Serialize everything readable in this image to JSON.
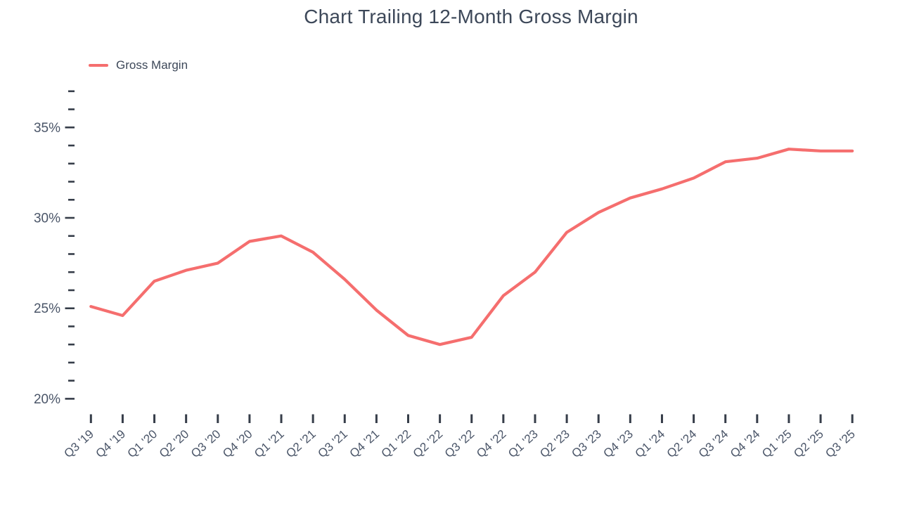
{
  "page": {
    "background": "#ffffff"
  },
  "chart_data": {
    "type": "line",
    "title": "Chart Trailing 12-Month Gross Margin",
    "legend": [
      "Gross Margin"
    ],
    "legend_position": "top-left",
    "grid": false,
    "x_categories": [
      "Q3 '19",
      "Q4 '19",
      "Q1 '20",
      "Q2 '20",
      "Q3 '20",
      "Q4 '20",
      "Q1 '21",
      "Q2 '21",
      "Q3 '21",
      "Q4 '21",
      "Q1 '22",
      "Q2 '22",
      "Q3 '22",
      "Q4 '22",
      "Q1 '23",
      "Q2 '23",
      "Q3 '23",
      "Q4 '23",
      "Q1 '24",
      "Q2 '24",
      "Q3 '24",
      "Q4 '24",
      "Q1 '25",
      "Q2 '25",
      "Q3 '25"
    ],
    "series": [
      {
        "name": "Gross Margin",
        "color": "#f56e6e",
        "values": [
          25.1,
          24.6,
          26.5,
          27.1,
          27.5,
          28.7,
          29.0,
          28.1,
          26.6,
          24.9,
          23.5,
          23.0,
          23.4,
          25.7,
          27.0,
          29.2,
          30.3,
          31.1,
          31.6,
          32.2,
          33.1,
          33.3,
          33.8,
          33.7,
          33.7
        ]
      }
    ],
    "xlabel": "",
    "ylabel": "",
    "y_axis": {
      "min": 20,
      "max": 37,
      "major_step": 5,
      "minor_step": 1,
      "unit": "%",
      "major_tick_labels": [
        "20%",
        "25%",
        "30%",
        "35%"
      ]
    },
    "colors": {
      "line": "#f56e6e",
      "title_text": "#3d4859",
      "axis_text": "#4a5568",
      "tick_mark": "#363d49",
      "background": "#ffffff"
    }
  }
}
